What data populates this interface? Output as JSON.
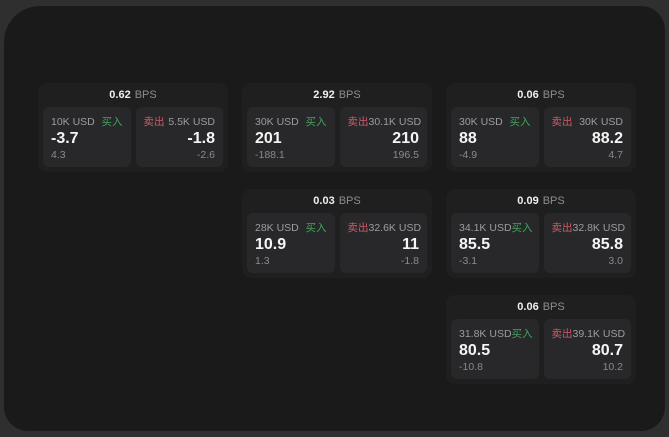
{
  "theme": {
    "page_bg": "#2f2f2f",
    "panel_bg": "#1a1a1b",
    "card_bg": "#1f1f20",
    "tile_bg": "#28282a",
    "buy_green": "#42a35c",
    "sell_red": "#cc5a69"
  },
  "labels": {
    "bps_unit": "BPS",
    "buy": "买入",
    "sell": "卖出"
  },
  "cards": [
    {
      "col": 1,
      "row": 1,
      "bps": "0.62",
      "buy": {
        "amount": "10K USD",
        "price": "-3.7",
        "delta": "4.3"
      },
      "sell": {
        "amount": "5.5K USD",
        "price": "-1.8",
        "delta": "-2.6"
      }
    },
    {
      "col": 2,
      "row": 1,
      "bps": "2.92",
      "buy": {
        "amount": "30K USD",
        "price": "201",
        "delta": "-188.1"
      },
      "sell": {
        "amount": "30.1K USD",
        "price": "210",
        "delta": "196.5"
      }
    },
    {
      "col": 3,
      "row": 1,
      "bps": "0.06",
      "buy": {
        "amount": "30K USD",
        "price": "88",
        "delta": "-4.9"
      },
      "sell": {
        "amount": "30K USD",
        "price": "88.2",
        "delta": "4.7"
      }
    },
    {
      "col": 2,
      "row": 2,
      "bps": "0.03",
      "buy": {
        "amount": "28K USD",
        "price": "10.9",
        "delta": "1.3"
      },
      "sell": {
        "amount": "32.6K USD",
        "price": "11",
        "delta": "-1.8"
      }
    },
    {
      "col": 3,
      "row": 2,
      "bps": "0.09",
      "buy": {
        "amount": "34.1K USD",
        "price": "85.5",
        "delta": "-3.1"
      },
      "sell": {
        "amount": "32.8K USD",
        "price": "85.8",
        "delta": "3.0"
      }
    },
    {
      "col": 3,
      "row": 3,
      "bps": "0.06",
      "buy": {
        "amount": "31.8K USD",
        "price": "80.5",
        "delta": "-10.8"
      },
      "sell": {
        "amount": "39.1K USD",
        "price": "80.7",
        "delta": "10.2"
      }
    }
  ]
}
